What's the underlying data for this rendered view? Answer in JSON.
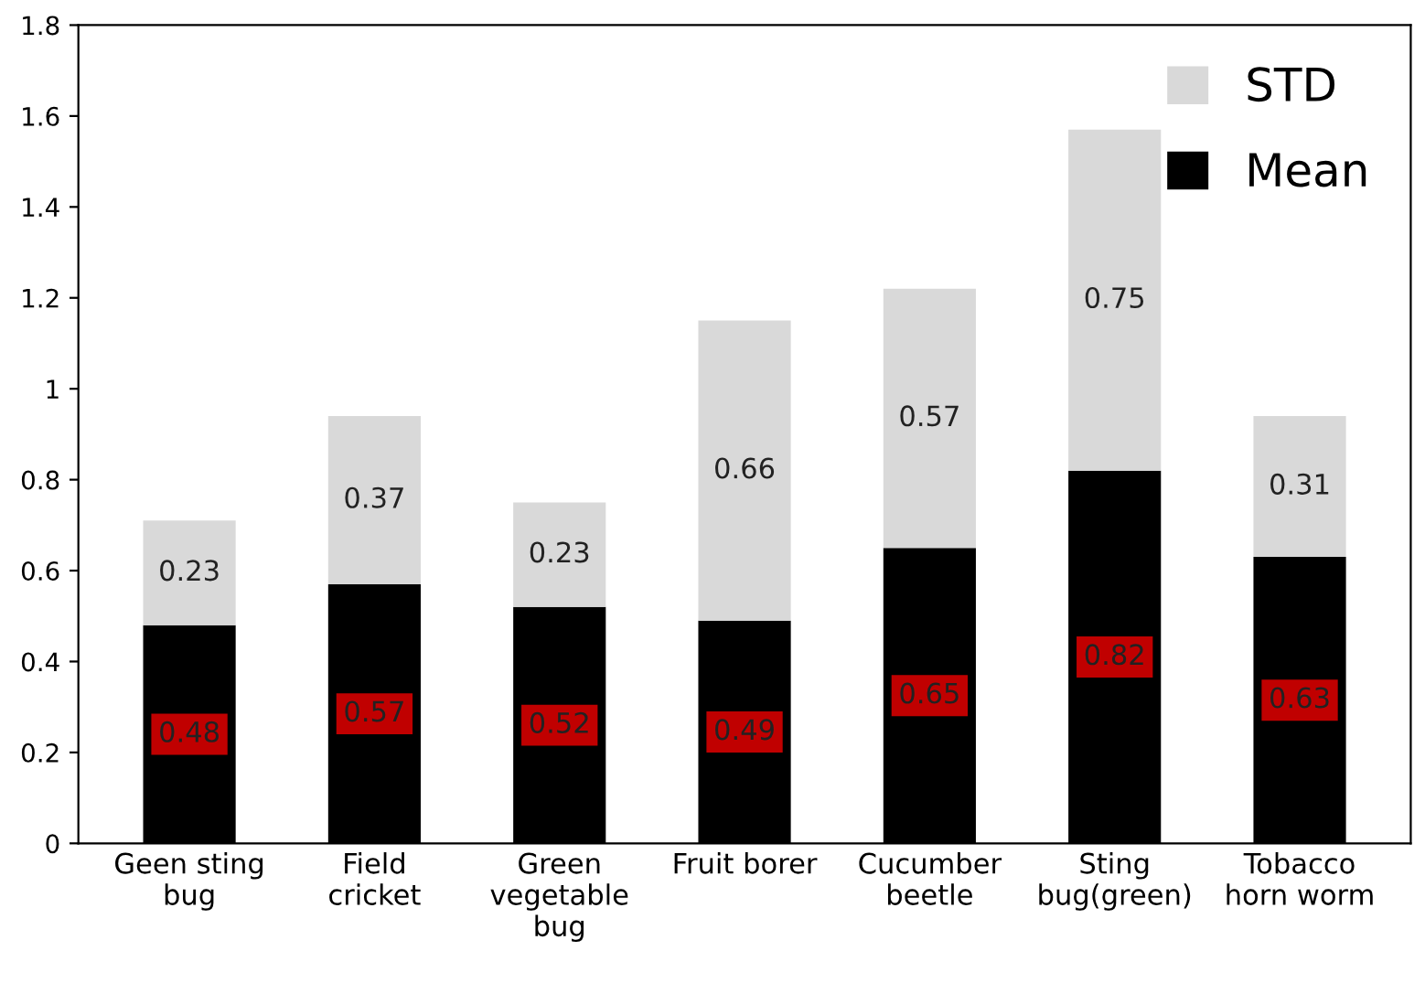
{
  "chart_data": {
    "type": "bar",
    "stacked": true,
    "categories": [
      "Geen sting\nbug",
      "Field\ncricket",
      "Green\nvegetable\nbug",
      "Fruit borer",
      "Cucumber\nbeetle",
      "Sting\nbug(green)",
      "Tobacco\nhorn worm"
    ],
    "series": [
      {
        "name": "Mean",
        "color": "#000000",
        "values": [
          0.48,
          0.57,
          0.52,
          0.49,
          0.65,
          0.82,
          0.63
        ]
      },
      {
        "name": "STD",
        "color": "#d9d9d9",
        "values": [
          0.23,
          0.37,
          0.23,
          0.66,
          0.57,
          0.75,
          0.31
        ]
      }
    ],
    "ylim": [
      0,
      1.8
    ],
    "yticks": [
      0,
      {
        "value": 0.2,
        "label": "0.2"
      },
      {
        "value": 0.4,
        "label": "0.4"
      },
      {
        "value": 0.6,
        "label": "0.6"
      },
      {
        "value": 0.8,
        "label": "0.8"
      },
      1,
      {
        "value": 1.2,
        "label": "1.2"
      },
      {
        "value": 1.4,
        "label": "1.4"
      },
      {
        "value": 1.6,
        "label": "1.6"
      },
      {
        "value": 1.8,
        "label": "1.8"
      }
    ],
    "data_labels": true,
    "grid": false,
    "legend": "top right"
  }
}
